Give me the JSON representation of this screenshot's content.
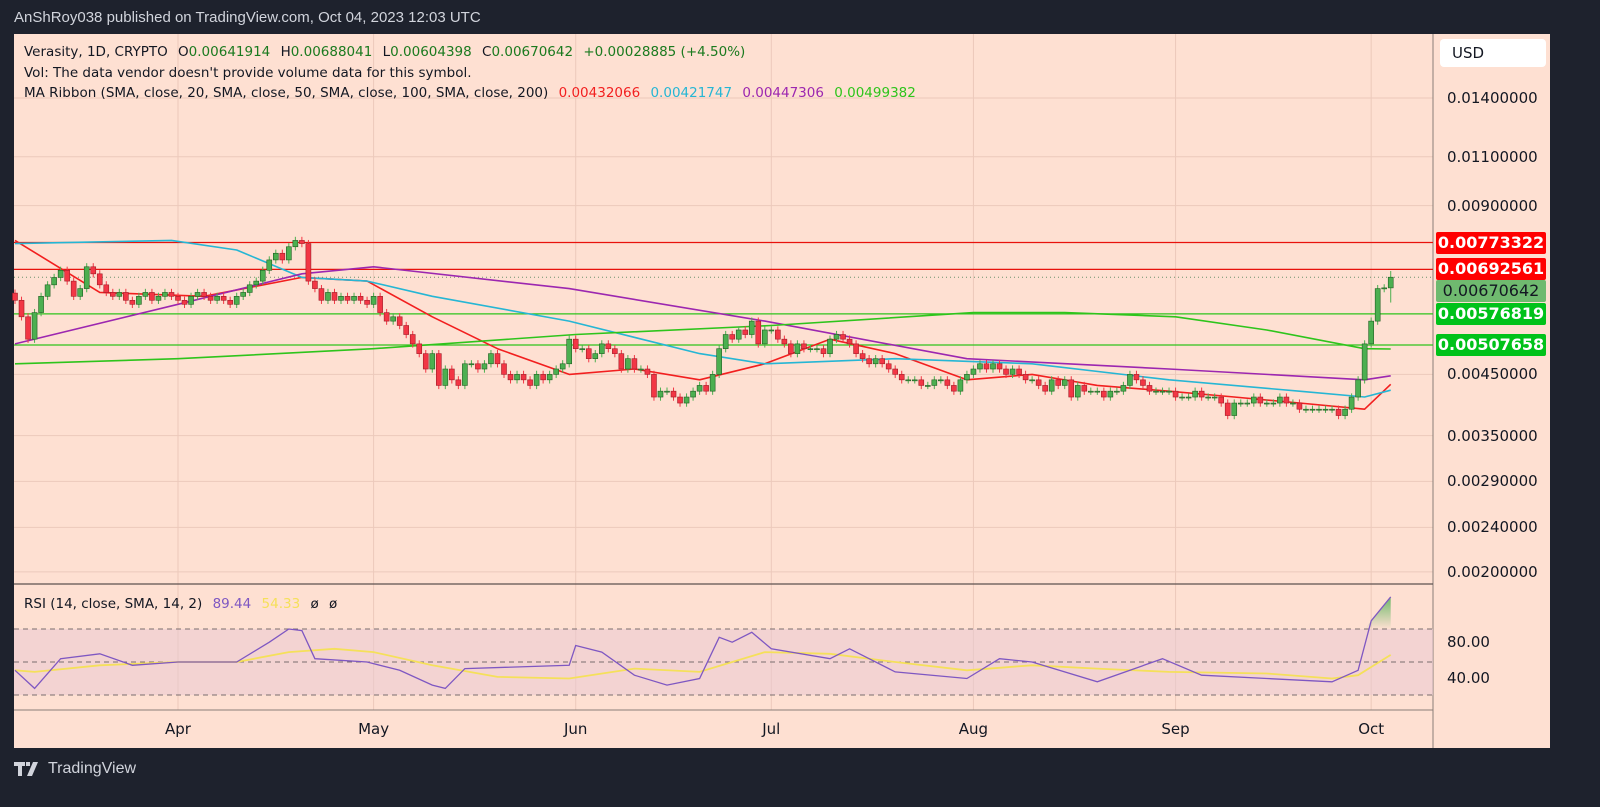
{
  "header": {
    "published": "AnShRoy038 published on TradingView.com, Oct 04, 2023 12:03 UTC"
  },
  "legend": {
    "symbol": "Verasity, 1D, CRYPTO",
    "open_label": "O",
    "open": "0.00641914",
    "high_label": "H",
    "high": "0.00688041",
    "low_label": "L",
    "low": "0.00604398",
    "close_label": "C",
    "close": "0.00670642",
    "change": "+0.00028885 (+4.50%)",
    "vol": "Vol: The data vendor doesn't provide volume data for this symbol.",
    "ma_title": "MA Ribbon (SMA, close, 20, SMA, close, 50, SMA, close, 100, SMA, close, 200)",
    "ma_values": [
      "0.00432066",
      "0.00421747",
      "0.00447306",
      "0.00499382"
    ],
    "rsi_title": "RSI (14, close, SMA, 14, 2)",
    "rsi_value": "89.44",
    "rsi_sma_value": "54.33",
    "rsi_extra": [
      "ø",
      "ø"
    ]
  },
  "price_axis": {
    "currency": "USD",
    "ticks": [
      "0.01400000",
      "0.01100000",
      "0.00900000",
      "0.00450000",
      "0.00350000",
      "0.00290000",
      "0.00240000",
      "0.00200000"
    ],
    "scale": "log",
    "badges": [
      {
        "value": "0.00773322",
        "color": "#ff0000",
        "text_color": "#ffffff"
      },
      {
        "value": "0.00692561",
        "color": "#ff0000",
        "text_color": "#ffffff"
      },
      {
        "value": "0.00670642",
        "color": "#6fba6f",
        "text_color": "#131722"
      },
      {
        "value": "0.00576819",
        "color": "#00c21a",
        "text_color": "#ffffff"
      },
      {
        "value": "0.00507658",
        "color": "#00c21a",
        "text_color": "#ffffff"
      }
    ]
  },
  "rsi_axis": {
    "ticks": [
      "80.00",
      "40.00"
    ],
    "bands": [
      70,
      50,
      30
    ]
  },
  "time_axis": {
    "labels": [
      "Apr",
      "May",
      "Jun",
      "Jul",
      "Aug",
      "Sep",
      "Oct"
    ]
  },
  "footer": {
    "brand": "TradingView"
  },
  "colors": {
    "up": "#4caf50",
    "down": "#f23645",
    "sma20": "#f21f1f",
    "sma50": "#26b6d4",
    "sma100": "#9c27b0",
    "sma200": "#2ec41c",
    "rsi": "#7e57c2",
    "rsi_sma": "#f5e05a",
    "background": "#fee0d2"
  },
  "chart_data": {
    "type": "candlestick",
    "title": "Verasity, 1D, CRYPTO",
    "start_date": "2023-03-07",
    "ylim": [
      0.0019,
      0.0165
    ],
    "yscale": "log",
    "grid": true,
    "closes": [
      0.0061,
      0.0057,
      0.0052,
      0.0058,
      0.0062,
      0.0065,
      0.0067,
      0.0069,
      0.0066,
      0.0062,
      0.0064,
      0.007,
      0.0068,
      0.0065,
      0.0063,
      0.0062,
      0.0063,
      0.0061,
      0.006,
      0.0062,
      0.0063,
      0.0061,
      0.0062,
      0.0063,
      0.0062,
      0.0061,
      0.006,
      0.0062,
      0.0063,
      0.0062,
      0.0061,
      0.0062,
      0.0061,
      0.006,
      0.0062,
      0.0063,
      0.0065,
      0.0066,
      0.0069,
      0.0072,
      0.0074,
      0.0072,
      0.0076,
      0.0078,
      0.0077,
      0.0066,
      0.0064,
      0.0061,
      0.0063,
      0.0061,
      0.0062,
      0.0061,
      0.0062,
      0.0061,
      0.006,
      0.0062,
      0.0058,
      0.0056,
      0.0057,
      0.0055,
      0.0053,
      0.0051,
      0.0049,
      0.0046,
      0.0049,
      0.0043,
      0.0046,
      0.0044,
      0.0043,
      0.0047,
      0.0047,
      0.0046,
      0.0047,
      0.0049,
      0.0047,
      0.0045,
      0.0044,
      0.0045,
      0.0044,
      0.0043,
      0.0045,
      0.0044,
      0.0045,
      0.0046,
      0.0047,
      0.0052,
      0.005,
      0.005,
      0.0048,
      0.0049,
      0.0051,
      0.005,
      0.0049,
      0.0046,
      0.0048,
      0.0046,
      0.0046,
      0.0045,
      0.0041,
      0.0042,
      0.0042,
      0.0041,
      0.004,
      0.0041,
      0.0042,
      0.0043,
      0.0042,
      0.0045,
      0.005,
      0.0053,
      0.0052,
      0.0054,
      0.0053,
      0.0056,
      0.0051,
      0.0054,
      0.0054,
      0.0052,
      0.0051,
      0.0049,
      0.0051,
      0.005,
      0.005,
      0.005,
      0.0049,
      0.0052,
      0.0053,
      0.0052,
      0.0051,
      0.0049,
      0.0048,
      0.0047,
      0.0048,
      0.0047,
      0.0046,
      0.0045,
      0.0044,
      0.0044,
      0.0044,
      0.0043,
      0.0043,
      0.0044,
      0.0044,
      0.0043,
      0.0042,
      0.0044,
      0.0045,
      0.0046,
      0.0047,
      0.0046,
      0.0047,
      0.0046,
      0.0045,
      0.0046,
      0.0045,
      0.0044,
      0.0044,
      0.0043,
      0.0042,
      0.0044,
      0.0043,
      0.0044,
      0.0041,
      0.0043,
      0.0042,
      0.0042,
      0.0042,
      0.0041,
      0.0042,
      0.0042,
      0.0043,
      0.0045,
      0.0044,
      0.0043,
      0.0042,
      0.0042,
      0.0042,
      0.0042,
      0.0041,
      0.0041,
      0.0041,
      0.0042,
      0.0041,
      0.0041,
      0.0041,
      0.004,
      0.0038,
      0.004,
      0.004,
      0.004,
      0.0041,
      0.004,
      0.004,
      0.004,
      0.0041,
      0.004,
      0.004,
      0.0039,
      0.0039,
      0.0039,
      0.0039,
      0.0039,
      0.0039,
      0.0038,
      0.0039,
      0.0041,
      0.0044,
      0.0051,
      0.0056,
      0.0064,
      0.00641914,
      0.00670642
    ],
    "last_candle": {
      "open": 0.00641914,
      "high": 0.00688041,
      "low": 0.00604398,
      "close": 0.00670642
    },
    "horizontal_levels": [
      0.00773322,
      0.00692561,
      0.00576819,
      0.00507658
    ],
    "series": [
      {
        "name": "SMA 20",
        "points": [
          [
            "2023-03-07",
            0.0078
          ],
          [
            "2023-03-20",
            0.0063
          ],
          [
            "2023-04-05",
            0.0062
          ],
          [
            "2023-04-20",
            0.0067
          ],
          [
            "2023-04-30",
            0.0066
          ],
          [
            "2023-05-10",
            0.0057
          ],
          [
            "2023-05-20",
            0.005
          ],
          [
            "2023-05-31",
            0.0045
          ],
          [
            "2023-06-10",
            0.0046
          ],
          [
            "2023-06-20",
            0.0044
          ],
          [
            "2023-06-30",
            0.0047
          ],
          [
            "2023-07-10",
            0.0052
          ],
          [
            "2023-07-20",
            0.0049
          ],
          [
            "2023-07-31",
            0.0044
          ],
          [
            "2023-08-10",
            0.0045
          ],
          [
            "2023-08-20",
            0.0043
          ],
          [
            "2023-08-31",
            0.0042
          ],
          [
            "2023-09-10",
            0.0041
          ],
          [
            "2023-09-20",
            0.004
          ],
          [
            "2023-09-30",
            0.0039
          ],
          [
            "2023-10-04",
            0.00432066
          ]
        ]
      },
      {
        "name": "SMA 50",
        "points": [
          [
            "2023-03-07",
            0.0077
          ],
          [
            "2023-03-31",
            0.0078
          ],
          [
            "2023-04-10",
            0.0075
          ],
          [
            "2023-04-20",
            0.0067
          ],
          [
            "2023-04-30",
            0.0066
          ],
          [
            "2023-05-10",
            0.0062
          ],
          [
            "2023-05-31",
            0.0056
          ],
          [
            "2023-06-20",
            0.0049
          ],
          [
            "2023-06-30",
            0.0047
          ],
          [
            "2023-07-20",
            0.0048
          ],
          [
            "2023-08-10",
            0.0047
          ],
          [
            "2023-08-31",
            0.0044
          ],
          [
            "2023-09-20",
            0.0042
          ],
          [
            "2023-09-30",
            0.0041
          ],
          [
            "2023-10-04",
            0.00421747
          ]
        ]
      },
      {
        "name": "SMA 100",
        "points": [
          [
            "2023-03-07",
            0.0051
          ],
          [
            "2023-04-01",
            0.006
          ],
          [
            "2023-04-20",
            0.0068
          ],
          [
            "2023-05-01",
            0.007
          ],
          [
            "2023-05-31",
            0.0064
          ],
          [
            "2023-06-30",
            0.0056
          ],
          [
            "2023-07-31",
            0.0048
          ],
          [
            "2023-08-31",
            0.0046
          ],
          [
            "2023-09-30",
            0.0044
          ],
          [
            "2023-10-04",
            0.00447306
          ]
        ]
      },
      {
        "name": "SMA 200",
        "points": [
          [
            "2023-03-07",
            0.0047
          ],
          [
            "2023-04-01",
            0.0048
          ],
          [
            "2023-05-01",
            0.005
          ],
          [
            "2023-06-01",
            0.0053
          ],
          [
            "2023-07-01",
            0.0055
          ],
          [
            "2023-08-01",
            0.0058
          ],
          [
            "2023-08-15",
            0.0058
          ],
          [
            "2023-09-01",
            0.0057
          ],
          [
            "2023-09-15",
            0.0054
          ],
          [
            "2023-09-30",
            0.005
          ],
          [
            "2023-10-04",
            0.00499382
          ]
        ]
      }
    ],
    "rsi": {
      "ylim": [
        22,
        97
      ],
      "values": [
        [
          "2023-03-07",
          45
        ],
        [
          "2023-03-10",
          34
        ],
        [
          "2023-03-14",
          52
        ],
        [
          "2023-03-20",
          55
        ],
        [
          "2023-03-25",
          48
        ],
        [
          "2023-04-01",
          50
        ],
        [
          "2023-04-10",
          50
        ],
        [
          "2023-04-15",
          62
        ],
        [
          "2023-04-18",
          70
        ],
        [
          "2023-04-20",
          69
        ],
        [
          "2023-04-22",
          52
        ],
        [
          "2023-04-30",
          50
        ],
        [
          "2023-05-05",
          45
        ],
        [
          "2023-05-10",
          36
        ],
        [
          "2023-05-12",
          34
        ],
        [
          "2023-05-15",
          46
        ],
        [
          "2023-05-31",
          48
        ],
        [
          "2023-06-01",
          60
        ],
        [
          "2023-06-05",
          56
        ],
        [
          "2023-06-10",
          42
        ],
        [
          "2023-06-15",
          36
        ],
        [
          "2023-06-20",
          40
        ],
        [
          "2023-06-23",
          65
        ],
        [
          "2023-06-25",
          62
        ],
        [
          "2023-06-28",
          68
        ],
        [
          "2023-07-01",
          58
        ],
        [
          "2023-07-10",
          52
        ],
        [
          "2023-07-13",
          58
        ],
        [
          "2023-07-20",
          44
        ],
        [
          "2023-07-31",
          40
        ],
        [
          "2023-08-05",
          52
        ],
        [
          "2023-08-10",
          50
        ],
        [
          "2023-08-20",
          38
        ],
        [
          "2023-08-30",
          52
        ],
        [
          "2023-09-05",
          42
        ],
        [
          "2023-09-15",
          40
        ],
        [
          "2023-09-25",
          38
        ],
        [
          "2023-09-29",
          45
        ],
        [
          "2023-10-01",
          75
        ],
        [
          "2023-10-04",
          89.44
        ]
      ],
      "sma": [
        [
          "2023-03-07",
          45
        ],
        [
          "2023-03-10",
          44
        ],
        [
          "2023-03-20",
          48
        ],
        [
          "2023-04-01",
          50
        ],
        [
          "2023-04-10",
          50
        ],
        [
          "2023-04-18",
          56
        ],
        [
          "2023-04-25",
          58
        ],
        [
          "2023-05-01",
          56
        ],
        [
          "2023-05-10",
          48
        ],
        [
          "2023-05-20",
          41
        ],
        [
          "2023-05-31",
          40
        ],
        [
          "2023-06-10",
          46
        ],
        [
          "2023-06-20",
          44
        ],
        [
          "2023-06-30",
          56
        ],
        [
          "2023-07-10",
          55
        ],
        [
          "2023-07-20",
          50
        ],
        [
          "2023-07-31",
          45
        ],
        [
          "2023-08-10",
          48
        ],
        [
          "2023-08-20",
          46
        ],
        [
          "2023-08-31",
          44
        ],
        [
          "2023-09-15",
          43
        ],
        [
          "2023-09-25",
          40
        ],
        [
          "2023-09-29",
          42
        ],
        [
          "2023-10-01",
          47
        ],
        [
          "2023-10-04",
          54.33
        ]
      ]
    }
  }
}
